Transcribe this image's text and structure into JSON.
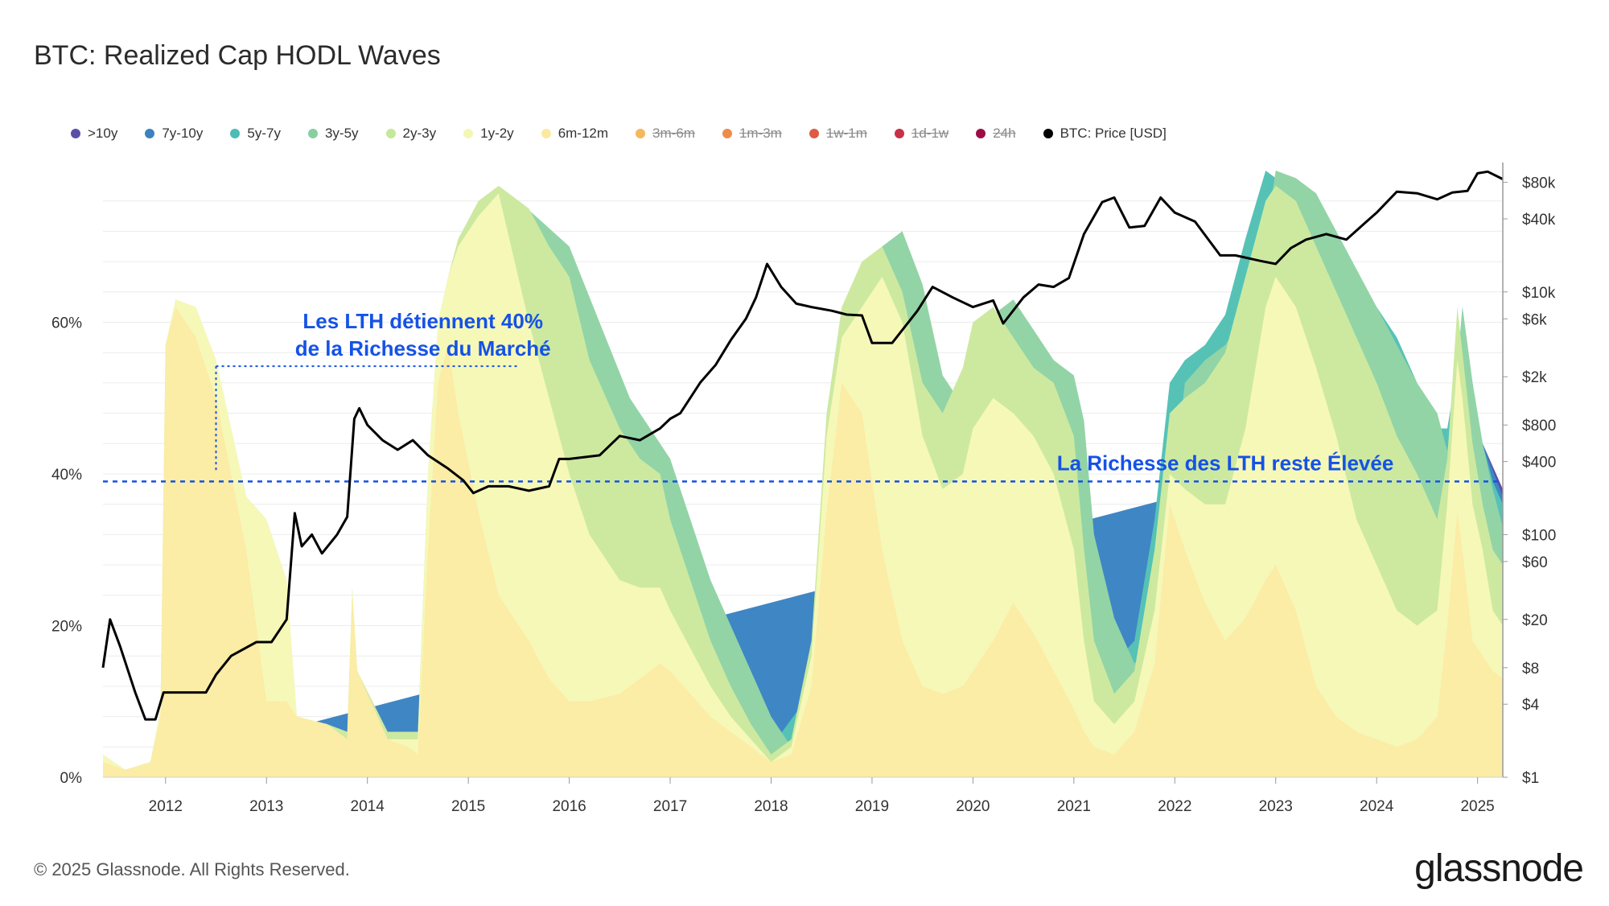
{
  "title": "BTC: Realized Cap HODL Waves",
  "footer": "© 2025 Glassnode. All Rights Reserved.",
  "brand": "glassnode",
  "colors": {
    "price": "#000000",
    "annotation": "#1552e6"
  },
  "chart_data": {
    "type": "area",
    "title": "BTC: Realized Cap HODL Waves",
    "legend": [
      {
        "name": ">10y",
        "color": "#5a4fa8",
        "active": true
      },
      {
        "name": "7y-10y",
        "color": "#3a82c0",
        "active": true
      },
      {
        "name": "5y-7y",
        "color": "#4cbcb4",
        "active": true
      },
      {
        "name": "3y-5y",
        "color": "#88cfa0",
        "active": true
      },
      {
        "name": "2y-3y",
        "color": "#c6e89a",
        "active": true
      },
      {
        "name": "1y-2y",
        "color": "#f3f7b4",
        "active": true
      },
      {
        "name": "6m-12m",
        "color": "#fbe9a0",
        "active": true
      },
      {
        "name": "3m-6m",
        "color": "#f5b85a",
        "active": false
      },
      {
        "name": "1m-3m",
        "color": "#ee8c4a",
        "active": false
      },
      {
        "name": "1w-1m",
        "color": "#dd5a44",
        "active": false
      },
      {
        "name": "1d-1w",
        "color": "#c73049",
        "active": false
      },
      {
        "name": "24h",
        "color": "#9e0b45",
        "active": false
      },
      {
        "name": "BTC: Price [USD]",
        "color": "#000000",
        "active": true
      }
    ],
    "x_ticks": [
      "2012",
      "2013",
      "2014",
      "2015",
      "2016",
      "2017",
      "2018",
      "2019",
      "2020",
      "2021",
      "2022",
      "2023",
      "2024",
      "2025"
    ],
    "x_range": [
      2011.38,
      2025.25
    ],
    "y_left_ticks": [
      {
        "label": "0%",
        "value": 0
      },
      {
        "label": "20%",
        "value": 20
      },
      {
        "label": "40%",
        "value": 40
      },
      {
        "label": "60%",
        "value": 60
      }
    ],
    "y_left_range": [
      0,
      80
    ],
    "y_right_ticks": [
      {
        "label": "$80k",
        "value": 80000
      },
      {
        "label": "$40k",
        "value": 40000
      },
      {
        "label": "$10k",
        "value": 10000
      },
      {
        "label": "$6k",
        "value": 6000
      },
      {
        "label": "$2k",
        "value": 2000
      },
      {
        "label": "$800",
        "value": 800
      },
      {
        "label": "$400",
        "value": 400
      },
      {
        "label": "$100",
        "value": 100
      },
      {
        "label": "$60",
        "value": 60
      },
      {
        "label": "$20",
        "value": 20
      },
      {
        "label": "$8",
        "value": 8
      },
      {
        "label": "$4",
        "value": 4
      },
      {
        "label": "$1",
        "value": 1
      }
    ],
    "y_right_range_log": [
      1,
      100000
    ],
    "bands": [
      {
        "name": "6m-12m",
        "color": "#fbeca6",
        "x": [
          2011.38,
          2011.6,
          2011.85,
          2011.95,
          2012.0,
          2012.1,
          2012.3,
          2012.5,
          2012.8,
          2013.0,
          2013.2,
          2013.3,
          2013.6,
          2013.8,
          2013.85,
          2013.9,
          2014.2,
          2014.4,
          2014.5,
          2014.6,
          2014.7,
          2014.8,
          2014.9,
          2015.1,
          2015.3,
          2015.6,
          2015.8,
          2016.0,
          2016.2,
          2016.5,
          2016.7,
          2016.9,
          2017.0,
          2017.2,
          2017.4,
          2017.6,
          2017.8,
          2018.0,
          2018.2,
          2018.4,
          2018.55,
          2018.7,
          2018.9,
          2019.1,
          2019.3,
          2019.5,
          2019.7,
          2019.9,
          2020.0,
          2020.2,
          2020.4,
          2020.6,
          2020.8,
          2021.0,
          2021.1,
          2021.2,
          2021.4,
          2021.6,
          2021.8,
          2021.95,
          2022.1,
          2022.3,
          2022.5,
          2022.7,
          2022.9,
          2023.0,
          2023.2,
          2023.4,
          2023.6,
          2023.8,
          2024.0,
          2024.2,
          2024.4,
          2024.6,
          2024.7,
          2024.8,
          2024.85,
          2024.95,
          2025.05,
          2025.15,
          2025.25
        ],
        "values": [
          2,
          1,
          2,
          8,
          57,
          62,
          58,
          50,
          30,
          10,
          10,
          8,
          7,
          5,
          24,
          14,
          5,
          4,
          3,
          30,
          52,
          57,
          48,
          35,
          24,
          18,
          13,
          10,
          10,
          11,
          13,
          15,
          14,
          11,
          8,
          6,
          4,
          2,
          3,
          12,
          35,
          52,
          48,
          30,
          18,
          12,
          11,
          12,
          14,
          18,
          23,
          19,
          14,
          9,
          6,
          4,
          3,
          6,
          15,
          36,
          30,
          23,
          18,
          21,
          26,
          28,
          22,
          12,
          8,
          6,
          5,
          4,
          5,
          8,
          20,
          35,
          30,
          18,
          16,
          14,
          13
        ]
      },
      {
        "name": "1y-2y",
        "color": "#f6f8b8",
        "x": [
          2011.38,
          2011.6,
          2011.85,
          2011.95,
          2012.0,
          2012.1,
          2012.3,
          2012.5,
          2012.8,
          2013.0,
          2013.2,
          2013.3,
          2013.6,
          2013.8,
          2013.85,
          2013.9,
          2014.2,
          2014.4,
          2014.5,
          2014.6,
          2014.7,
          2014.8,
          2014.9,
          2015.1,
          2015.3,
          2015.6,
          2015.8,
          2016.0,
          2016.2,
          2016.5,
          2016.7,
          2016.9,
          2017.0,
          2017.2,
          2017.4,
          2017.6,
          2017.8,
          2018.0,
          2018.2,
          2018.4,
          2018.55,
          2018.7,
          2018.9,
          2019.1,
          2019.3,
          2019.5,
          2019.7,
          2019.9,
          2020.0,
          2020.2,
          2020.4,
          2020.6,
          2020.8,
          2021.0,
          2021.1,
          2021.2,
          2021.4,
          2021.6,
          2021.8,
          2021.95,
          2022.1,
          2022.3,
          2022.5,
          2022.7,
          2022.9,
          2023.0,
          2023.2,
          2023.4,
          2023.6,
          2023.8,
          2024.0,
          2024.2,
          2024.4,
          2024.6,
          2024.7,
          2024.8,
          2024.85,
          2024.95,
          2025.05,
          2025.15,
          2025.25
        ],
        "values": [
          3,
          1,
          2,
          9,
          57,
          63,
          62,
          55,
          37,
          34,
          26,
          8,
          7,
          5,
          25,
          14,
          5,
          5,
          5,
          40,
          60,
          66,
          70,
          74,
          77,
          60,
          50,
          40,
          32,
          26,
          25,
          25,
          22,
          17,
          12,
          8,
          5,
          2,
          4,
          16,
          45,
          58,
          62,
          66,
          60,
          45,
          38,
          40,
          46,
          50,
          48,
          45,
          40,
          30,
          18,
          10,
          7,
          10,
          22,
          40,
          38,
          36,
          36,
          46,
          62,
          66,
          62,
          54,
          45,
          34,
          28,
          22,
          20,
          22,
          36,
          55,
          50,
          36,
          30,
          22,
          20
        ]
      },
      {
        "name": "2y-3y",
        "color": "#cde9a0",
        "x": [
          2011.38,
          2011.6,
          2011.85,
          2011.95,
          2012.0,
          2012.1,
          2012.3,
          2012.5,
          2012.8,
          2013.0,
          2013.2,
          2013.3,
          2013.6,
          2013.8,
          2013.85,
          2013.9,
          2014.2,
          2014.4,
          2014.5,
          2014.6,
          2014.7,
          2014.8,
          2014.9,
          2015.1,
          2015.3,
          2015.6,
          2015.8,
          2016.0,
          2016.2,
          2016.5,
          2016.7,
          2016.9,
          2017.0,
          2017.2,
          2017.4,
          2017.6,
          2017.8,
          2018.0,
          2018.2,
          2018.4,
          2018.55,
          2018.7,
          2018.9,
          2019.1,
          2019.3,
          2019.5,
          2019.7,
          2019.9,
          2020.0,
          2020.2,
          2020.4,
          2020.6,
          2020.8,
          2021.0,
          2021.1,
          2021.2,
          2021.4,
          2021.6,
          2021.8,
          2021.95,
          2022.1,
          2022.3,
          2022.5,
          2022.7,
          2022.9,
          2023.0,
          2023.2,
          2023.4,
          2023.6,
          2023.8,
          2024.0,
          2024.2,
          2024.4,
          2024.6,
          2024.7,
          2024.8,
          2024.85,
          2024.95,
          2025.05,
          2025.15,
          2025.25
        ],
        "values": [
          3,
          1,
          2,
          9,
          57,
          63,
          62,
          55,
          37,
          34,
          26,
          8,
          7,
          6,
          25,
          14,
          6,
          6,
          6,
          40,
          60,
          66,
          71,
          76,
          78,
          75,
          70,
          66,
          55,
          46,
          42,
          40,
          34,
          26,
          18,
          12,
          7,
          3,
          5,
          18,
          48,
          62,
          68,
          70,
          64,
          52,
          48,
          54,
          60,
          62,
          58,
          54,
          52,
          45,
          30,
          18,
          11,
          14,
          30,
          48,
          50,
          52,
          56,
          66,
          76,
          78,
          76,
          70,
          64,
          58,
          52,
          45,
          40,
          34,
          42,
          62,
          56,
          44,
          36,
          30,
          28
        ]
      },
      {
        "name": "3y-5y",
        "color": "#92d4a6",
        "x": [
          2011.38,
          2013.6,
          2013.8,
          2014.2,
          2014.5,
          2015.0,
          2015.5,
          2016.0,
          2016.3,
          2016.6,
          2016.9,
          2017.0,
          2017.2,
          2017.4,
          2017.6,
          2017.8,
          2018.0,
          2018.2,
          2018.4,
          2018.55,
          2018.7,
          2018.9,
          2019.1,
          2019.3,
          2019.5,
          2019.7,
          2019.9,
          2020.0,
          2020.2,
          2020.4,
          2020.6,
          2020.8,
          2021.0,
          2021.1,
          2021.2,
          2021.4,
          2021.6,
          2021.8,
          2021.95,
          2022.1,
          2022.3,
          2022.5,
          2022.7,
          2022.9,
          2023.0,
          2023.2,
          2023.4,
          2023.6,
          2023.8,
          2024.0,
          2024.2,
          2024.4,
          2024.6,
          2024.7,
          2024.8,
          2024.85,
          2024.95,
          2025.05,
          2025.15,
          2025.25
        ],
        "values": [
          0,
          7,
          6,
          6,
          6,
          71,
          76,
          70,
          60,
          50,
          44,
          42,
          34,
          26,
          20,
          14,
          8,
          4,
          6,
          20,
          50,
          64,
          70,
          72,
          65,
          53,
          49,
          55,
          61,
          63,
          59,
          55,
          53,
          47,
          32,
          21,
          15,
          18,
          34,
          52,
          55,
          57,
          61,
          71,
          80,
          79,
          77,
          72,
          67,
          62,
          57,
          52,
          48,
          43,
          53,
          62,
          52,
          44,
          38,
          33
        ]
      },
      {
        "name": "5y-7y",
        "color": "#56c2b6",
        "x": [
          2011.38,
          2018.0,
          2020.8,
          2021.0,
          2021.1,
          2021.2,
          2021.4,
          2021.6,
          2021.8,
          2021.95,
          2022.1,
          2022.3,
          2022.5,
          2022.7,
          2022.9,
          2023.0,
          2023.2,
          2023.4,
          2023.6,
          2023.8,
          2024.0,
          2024.2,
          2024.4,
          2024.6,
          2024.7,
          2024.8,
          2024.85,
          2024.95,
          2025.05,
          2025.15,
          2025.25
        ],
        "values": [
          0,
          4,
          55,
          47,
          32,
          21,
          15,
          18,
          34,
          52,
          55,
          57,
          61,
          71,
          80,
          79,
          78,
          74,
          70,
          66,
          62,
          58,
          52,
          46,
          46,
          54,
          62,
          52,
          44,
          39,
          36
        ]
      },
      {
        "name": "7y-10y",
        "color": "#3f86c4",
        "x": [
          2011.38,
          2024.6,
          2024.8,
          2025.05,
          2025.25
        ],
        "values": [
          0,
          46,
          46,
          44,
          37
        ]
      },
      {
        "name": ">10y",
        "color": "#5a4fa8",
        "x": [
          2011.38,
          2024.8,
          2025.05,
          2025.25
        ],
        "values": [
          0,
          46,
          44,
          38
        ]
      }
    ],
    "price_series": {
      "name": "BTC: Price [USD]",
      "x": [
        2011.38,
        2011.45,
        2011.55,
        2011.7,
        2011.8,
        2011.9,
        2011.98,
        2012.05,
        2012.2,
        2012.4,
        2012.5,
        2012.65,
        2012.9,
        2013.05,
        2013.2,
        2013.28,
        2013.35,
        2013.45,
        2013.55,
        2013.7,
        2013.8,
        2013.87,
        2013.92,
        2014.0,
        2014.15,
        2014.3,
        2014.45,
        2014.6,
        2014.8,
        2014.95,
        2015.05,
        2015.2,
        2015.4,
        2015.6,
        2015.8,
        2015.9,
        2016.0,
        2016.3,
        2016.5,
        2016.7,
        2016.9,
        2017.0,
        2017.1,
        2017.3,
        2017.45,
        2017.6,
        2017.75,
        2017.85,
        2017.96,
        2018.1,
        2018.25,
        2018.4,
        2018.6,
        2018.75,
        2018.9,
        2019.0,
        2019.2,
        2019.45,
        2019.6,
        2019.8,
        2020.0,
        2020.2,
        2020.3,
        2020.5,
        2020.65,
        2020.8,
        2020.95,
        2021.1,
        2021.28,
        2021.4,
        2021.55,
        2021.7,
        2021.86,
        2022.0,
        2022.2,
        2022.45,
        2022.6,
        2022.85,
        2023.0,
        2023.15,
        2023.3,
        2023.5,
        2023.7,
        2023.9,
        2024.0,
        2024.2,
        2024.4,
        2024.6,
        2024.75,
        2024.9,
        2025.0,
        2025.1,
        2025.25
      ],
      "values": [
        8,
        20,
        12,
        5,
        3,
        3,
        5,
        5,
        5,
        5,
        7,
        10,
        13,
        13,
        20,
        150,
        80,
        100,
        70,
        100,
        140,
        900,
        1100,
        800,
        600,
        500,
        600,
        450,
        350,
        280,
        220,
        250,
        250,
        230,
        250,
        420,
        420,
        450,
        650,
        600,
        750,
        900,
        1000,
        1800,
        2500,
        4000,
        6000,
        9000,
        17000,
        11000,
        8000,
        7500,
        7000,
        6500,
        6400,
        3800,
        3800,
        7000,
        11000,
        9000,
        7500,
        8500,
        5500,
        9000,
        11500,
        11000,
        13000,
        30000,
        55000,
        60000,
        34000,
        35000,
        60000,
        45000,
        38000,
        20000,
        20000,
        18000,
        17000,
        23000,
        27000,
        30000,
        27000,
        38000,
        45000,
        67000,
        65000,
        58000,
        66000,
        68000,
        95000,
        98000,
        85000
      ]
    },
    "annotations": [
      {
        "text": "Les LTH détiennent 40%",
        "line": 1
      },
      {
        "text": "de la Richesse du Marché",
        "line": 2
      },
      {
        "text": "La Richesse des LTH reste Élevée",
        "line": 1
      }
    ],
    "reference_line_value": 39
  }
}
